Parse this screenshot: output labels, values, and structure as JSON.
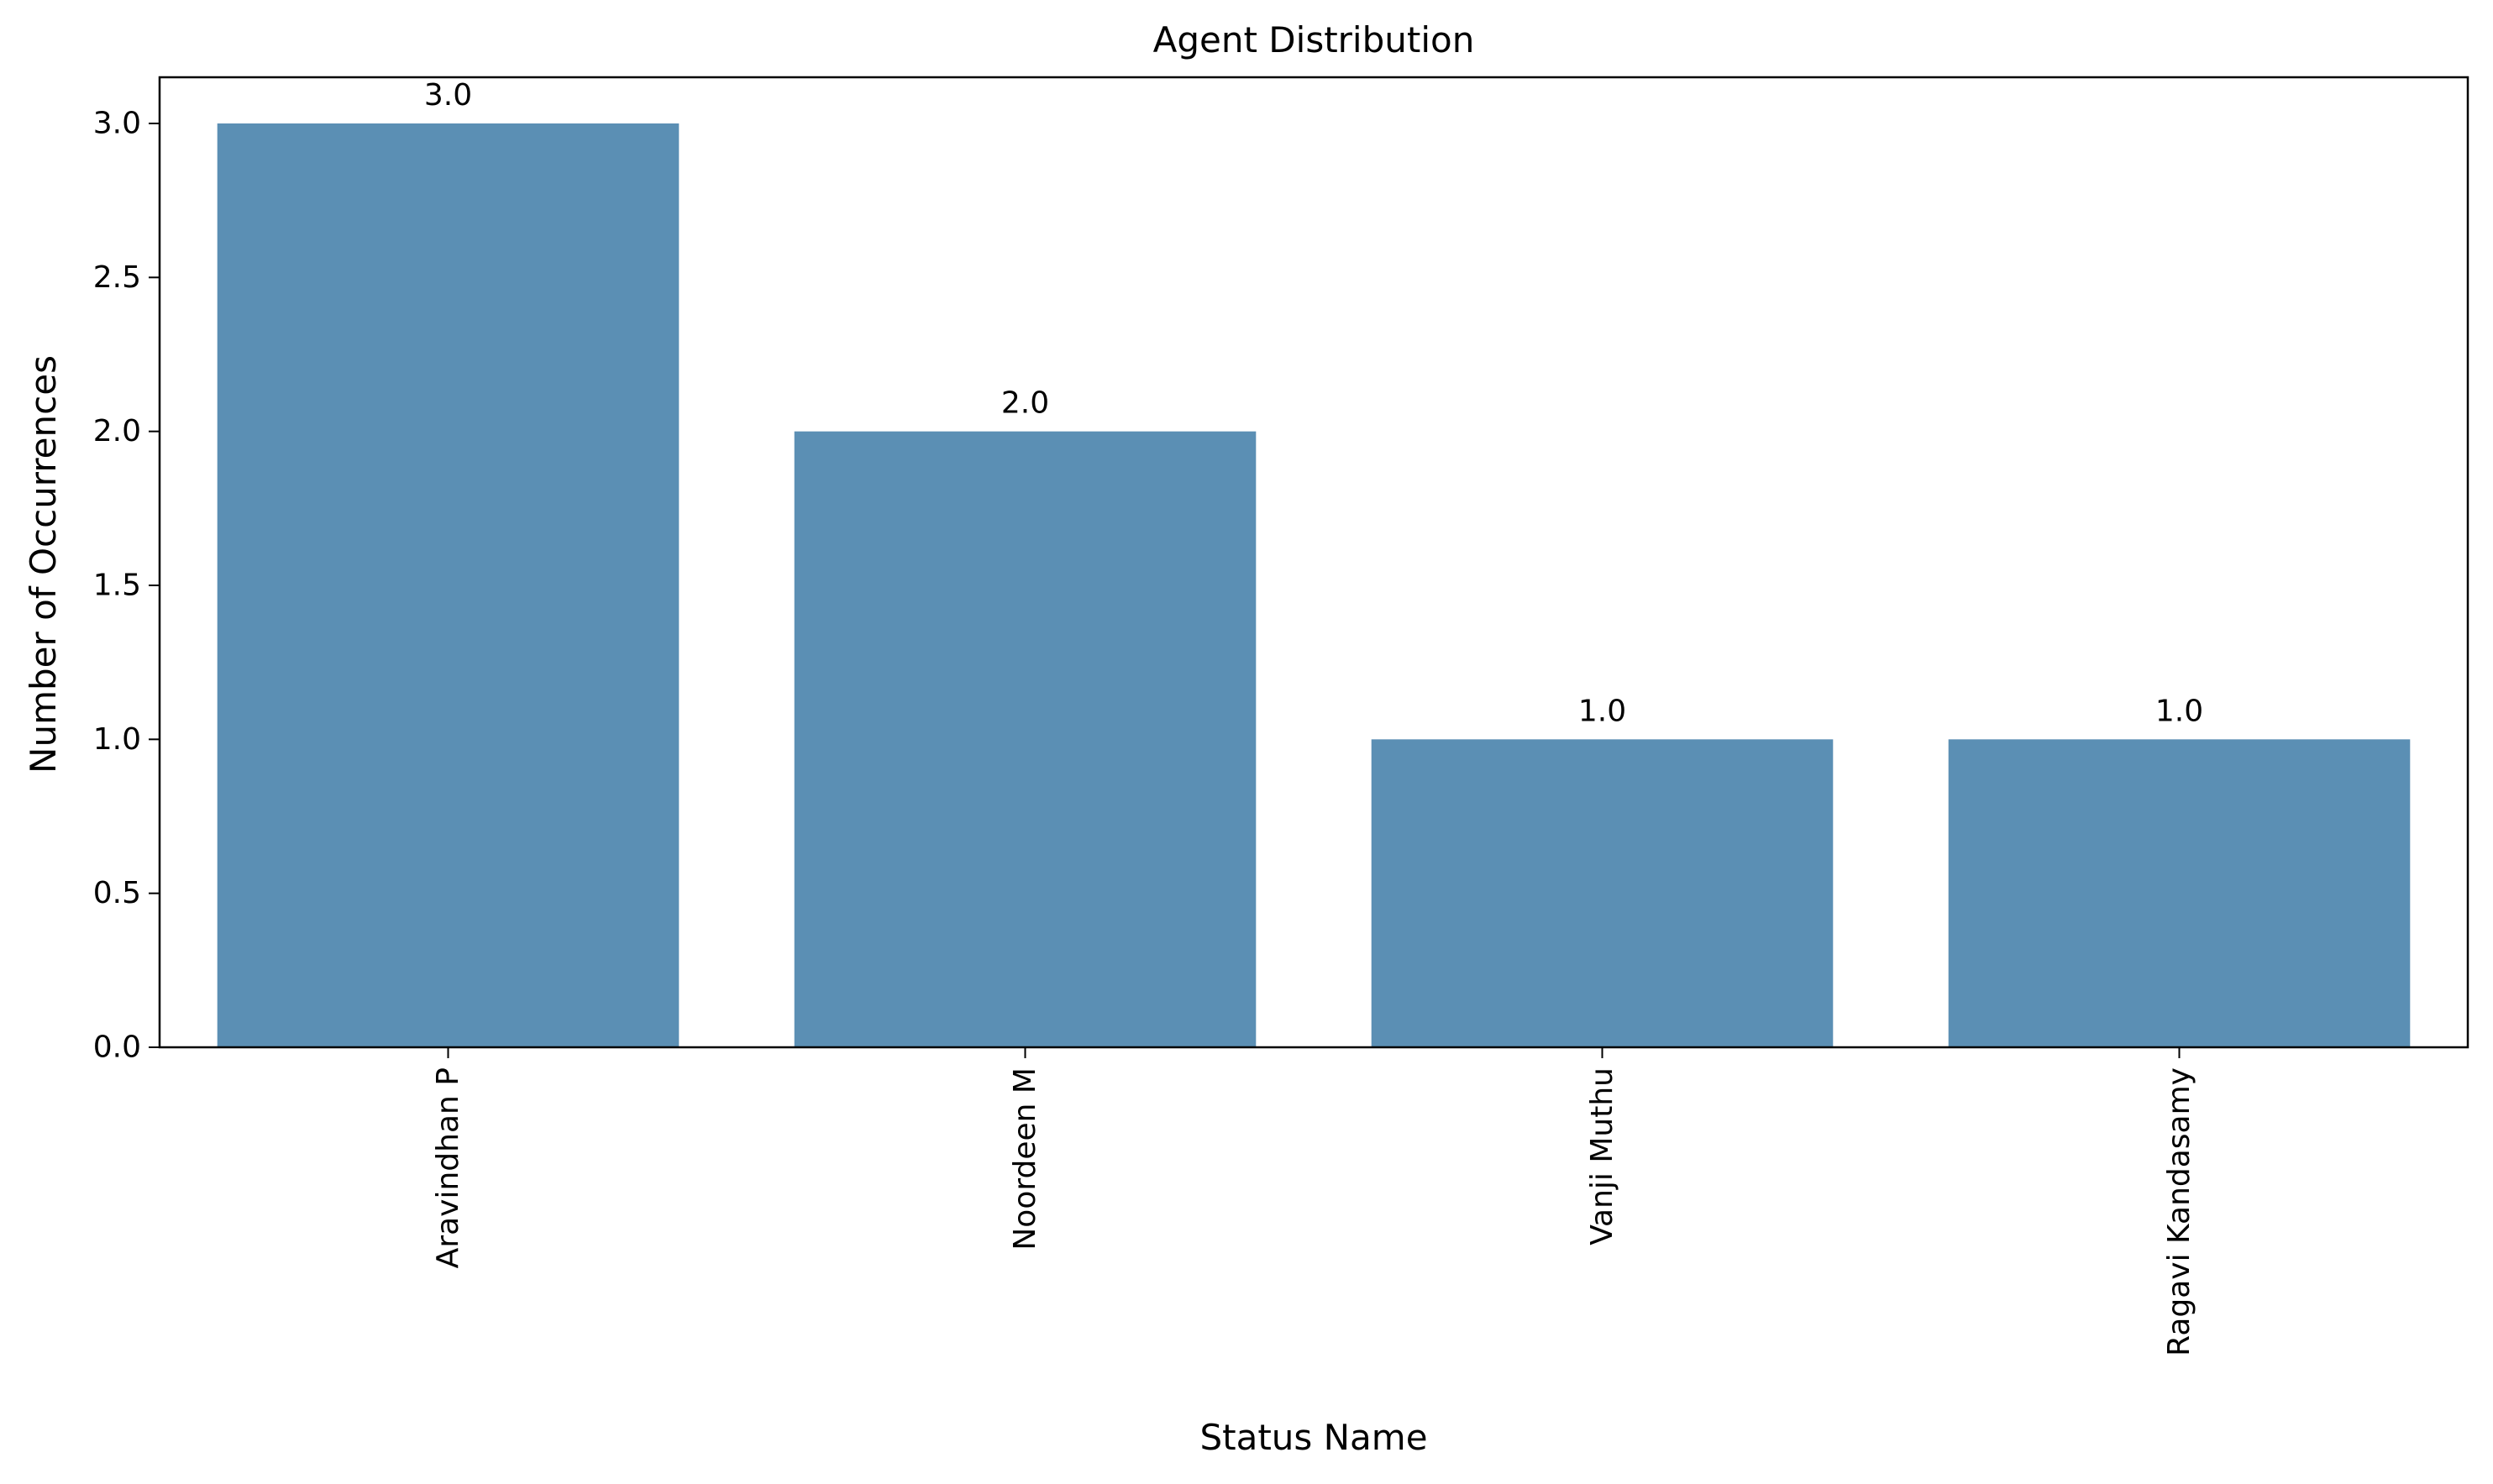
{
  "chart_data": {
    "type": "bar",
    "title": "Agent Distribution",
    "xlabel": "Status Name",
    "ylabel": "Number of Occurrences",
    "categories": [
      "Aravindhan P",
      "Noordeen M",
      "Vanji Muthu",
      "Ragavi Kandasamy"
    ],
    "values": [
      3.0,
      2.0,
      1.0,
      1.0
    ],
    "data_labels": [
      "3.0",
      "2.0",
      "1.0",
      "1.0"
    ],
    "ylim": [
      0,
      3.15
    ],
    "yticks": [
      0.0,
      0.5,
      1.0,
      1.5,
      2.0,
      2.5,
      3.0
    ],
    "ytick_labels": [
      "0.0",
      "0.5",
      "1.0",
      "1.5",
      "2.0",
      "2.5",
      "3.0"
    ],
    "grid": false,
    "legend": "none",
    "bar_color": "#5b8fb4"
  }
}
